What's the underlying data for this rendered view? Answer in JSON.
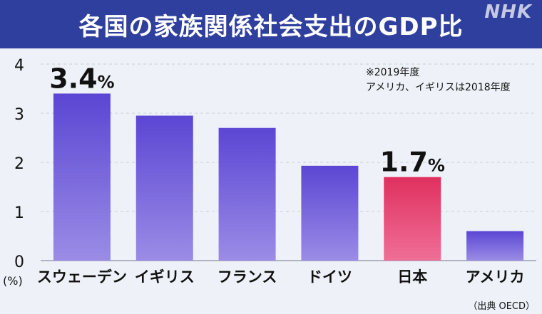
{
  "title": "各国の家族関係社会支出のGDP比",
  "logo_text": "NHK",
  "colors": {
    "title_bg": "#2e3f9d",
    "bar_top": "#5b46d3",
    "bar_bottom": "#9b8ce6",
    "highlight_top": "#e0305f",
    "highlight_bottom": "#ef6f97",
    "background": "#eef2f8"
  },
  "chart_data": {
    "type": "bar",
    "categories": [
      "スウェーデン",
      "イギリス",
      "フランス",
      "ドイツ",
      "日本",
      "アメリカ"
    ],
    "values": [
      3.4,
      2.95,
      2.7,
      1.93,
      1.7,
      0.6
    ],
    "highlight_index": 4,
    "data_labels": [
      {
        "index": 0,
        "value": "3.4",
        "unit": "%"
      },
      {
        "index": 4,
        "value": "1.7",
        "unit": "%"
      }
    ],
    "ylim": [
      0,
      4
    ],
    "yticks": [
      0,
      1,
      2,
      3,
      4
    ],
    "ylabel": "(%)",
    "grid": true,
    "notes": [
      "※2019年度",
      "アメリカ、イギリスは2018年度"
    ],
    "source": "（出典 OECD）"
  }
}
